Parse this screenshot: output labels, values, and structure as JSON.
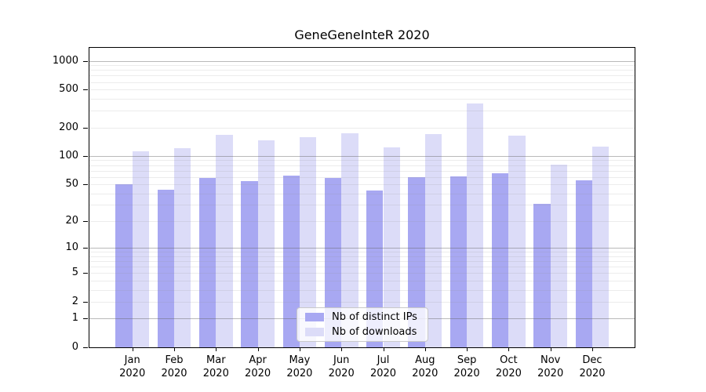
{
  "title": "GeneGeneInteR 2020",
  "chart_data": {
    "type": "bar",
    "title": "GeneGeneInteR 2020",
    "categories": [
      "Jan",
      "Feb",
      "Mar",
      "Apr",
      "May",
      "Jun",
      "Jul",
      "Aug",
      "Sep",
      "Oct",
      "Nov",
      "Dec"
    ],
    "x_tick_year": "2020",
    "series": [
      {
        "name": "Nb of distinct IPs",
        "color": "#a8a8f2",
        "values": [
          50,
          44,
          58,
          54,
          62,
          58,
          43,
          60,
          61,
          65,
          31,
          55
        ]
      },
      {
        "name": "Nb of downloads",
        "color": "#dcdcf8",
        "values": [
          113,
          121,
          167,
          145,
          158,
          173,
          124,
          170,
          355,
          165,
          81,
          126
        ]
      }
    ],
    "y_axis": {
      "scale": "log1p",
      "ticks": [
        0,
        1,
        2,
        5,
        10,
        20,
        50,
        100,
        200,
        500,
        1000
      ],
      "ylim": [
        0,
        1370
      ]
    },
    "legend_position": "lower center",
    "grid": "horizontal",
    "colors": {
      "axis": "#000000",
      "major_grid": "#646464",
      "minor_grid": "#969696",
      "legend_border": "#c9c9c9"
    }
  }
}
